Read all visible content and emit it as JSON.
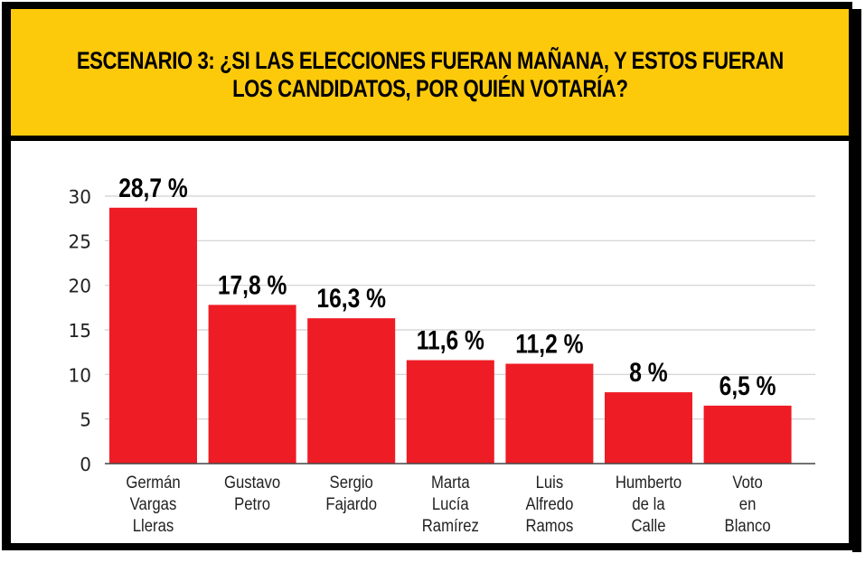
{
  "header": {
    "title_line1": "ESCENARIO 3: ¿SI LAS ELECCIONES FUERAN MAÑANA, Y ESTOS FUERAN",
    "title_line2": "LOS CANDIDATOS, POR QUIÉN VOTARÍA?"
  },
  "colors": {
    "header_bg": "#fdca0b",
    "bar": "#ee1c25",
    "frame": "#000000",
    "grid": "#d0d0d0"
  },
  "chart_data": {
    "type": "bar",
    "title": "ESCENARIO 3: ¿SI LAS ELECCIONES FUERAN MAÑANA, Y ESTOS FUERAN LOS CANDIDATOS, POR QUIÉN VOTARÍA?",
    "xlabel": "",
    "ylabel": "",
    "ylim": [
      0,
      30
    ],
    "yticks": [
      0,
      5,
      10,
      15,
      20,
      25,
      30
    ],
    "grid": true,
    "legend": "none",
    "categories": [
      [
        "Germán",
        "Vargas",
        "Lleras"
      ],
      [
        "Gustavo",
        "Petro"
      ],
      [
        "Sergio",
        "Fajardo"
      ],
      [
        "Marta",
        "Lucía",
        "Ramírez"
      ],
      [
        "Luis",
        "Alfredo",
        "Ramos"
      ],
      [
        "Humberto",
        "de la",
        "Calle"
      ],
      [
        "Voto",
        "en",
        "Blanco"
      ]
    ],
    "values": [
      28.7,
      17.8,
      16.3,
      11.6,
      11.2,
      8,
      6.5
    ],
    "data_labels": [
      "28,7 %",
      "17,8 %",
      "16,3 %",
      "11,6 %",
      "11,2 %",
      "8 %",
      "6,5 %"
    ]
  }
}
